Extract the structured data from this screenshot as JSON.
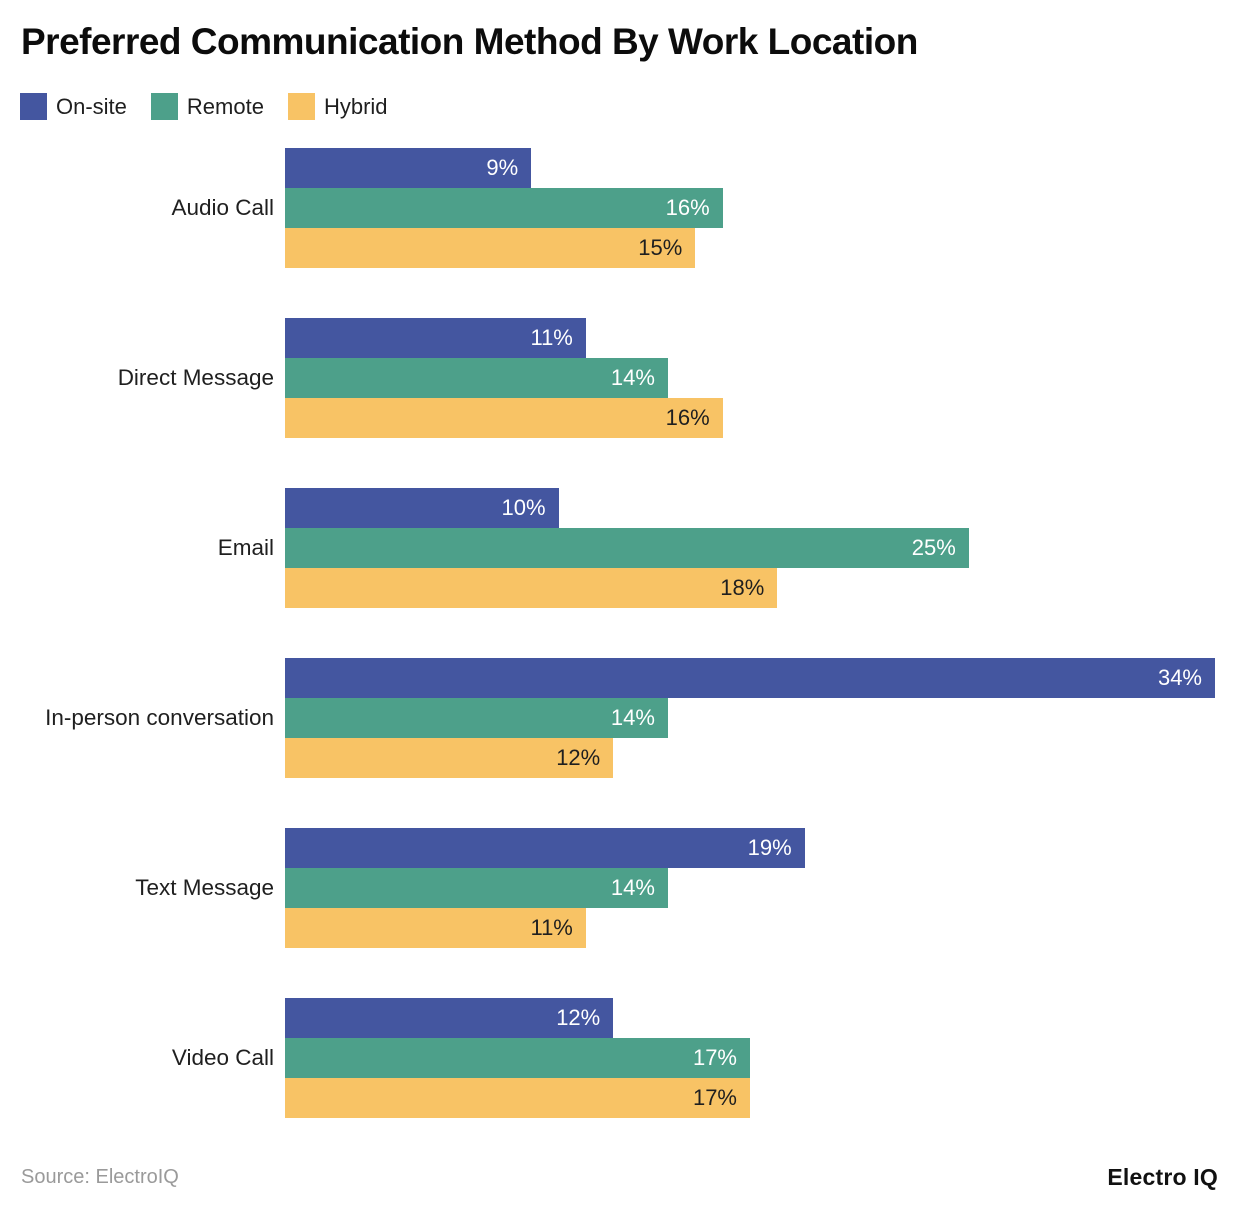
{
  "title": "Preferred Communication Method By Work Location",
  "legend": [
    {
      "label": "On-site",
      "color": "#4456A0"
    },
    {
      "label": "Remote",
      "color": "#4DA08A"
    },
    {
      "label": "Hybrid",
      "color": "#F8C365"
    }
  ],
  "chart_data": {
    "type": "bar",
    "orientation": "horizontal",
    "title": "Preferred Communication Method By Work Location",
    "categories": [
      "Audio Call",
      "Direct Message",
      "Email",
      "In-person conversation",
      "Text Message",
      "Video Call"
    ],
    "series": [
      {
        "name": "On-site",
        "color": "#4456A0",
        "label_color": "#ffffff",
        "values": [
          9,
          11,
          10,
          34,
          19,
          12
        ]
      },
      {
        "name": "Remote",
        "color": "#4DA08A",
        "label_color": "#ffffff",
        "values": [
          16,
          14,
          25,
          14,
          14,
          17
        ]
      },
      {
        "name": "Hybrid",
        "color": "#F8C365",
        "label_color": "#1f1f1f",
        "values": [
          15,
          16,
          18,
          12,
          11,
          17
        ]
      }
    ],
    "value_suffix": "%",
    "xlim": [
      0,
      34
    ],
    "grid": false,
    "legend_position": "top-left",
    "value_labels": "inside-end"
  },
  "footer": {
    "source": "Source: ElectroIQ",
    "brand": "Electro IQ"
  }
}
